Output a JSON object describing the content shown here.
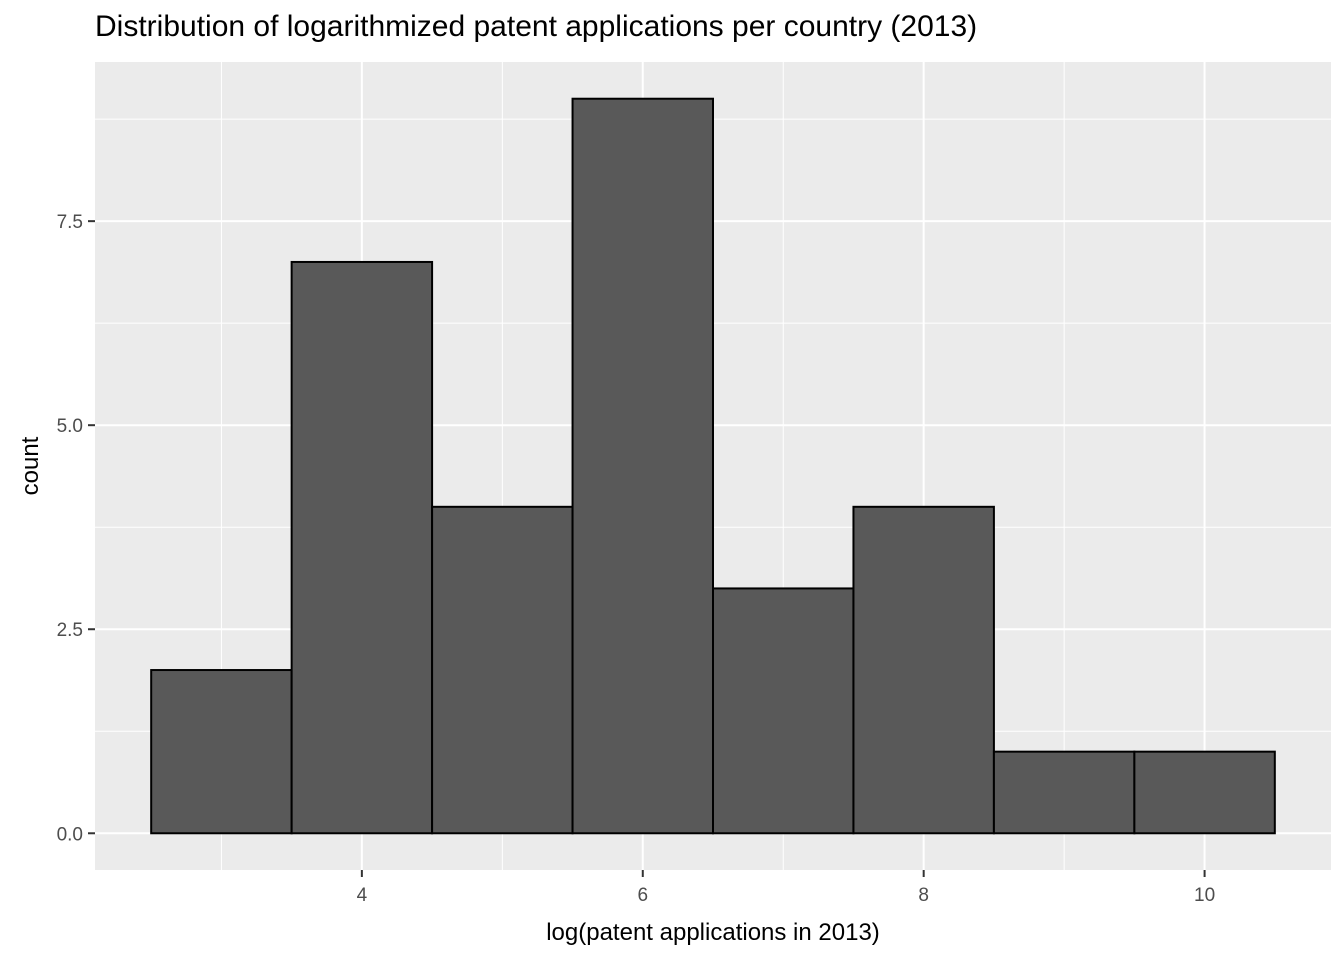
{
  "chart_data": {
    "type": "bar",
    "title": "Distribution of logarithmized patent applications per country (2013)",
    "xlabel": "log(patent applications in 2013)",
    "ylabel": "count",
    "bins": [
      {
        "x_start": 2.5,
        "x_end": 3.5,
        "count": 2
      },
      {
        "x_start": 3.5,
        "x_end": 4.5,
        "count": 7
      },
      {
        "x_start": 4.5,
        "x_end": 5.5,
        "count": 4
      },
      {
        "x_start": 5.5,
        "x_end": 6.5,
        "count": 9
      },
      {
        "x_start": 6.5,
        "x_end": 7.5,
        "count": 3
      },
      {
        "x_start": 7.5,
        "x_end": 8.5,
        "count": 4
      },
      {
        "x_start": 8.5,
        "x_end": 9.5,
        "count": 1
      },
      {
        "x_start": 9.5,
        "x_end": 10.5,
        "count": 1
      }
    ],
    "x_ticks": [
      "4",
      "6",
      "8",
      "10"
    ],
    "y_ticks": [
      "0.0",
      "2.5",
      "5.0",
      "7.5"
    ],
    "xlim": [
      2.1,
      10.9
    ],
    "ylim": [
      -0.45,
      9.45
    ],
    "grid": true,
    "colors": {
      "panel_background": "#ebebeb",
      "grid_major": "#ffffff",
      "bar_fill": "#595959",
      "bar_stroke": "#000000",
      "tick_text": "#4d4d4d"
    }
  }
}
